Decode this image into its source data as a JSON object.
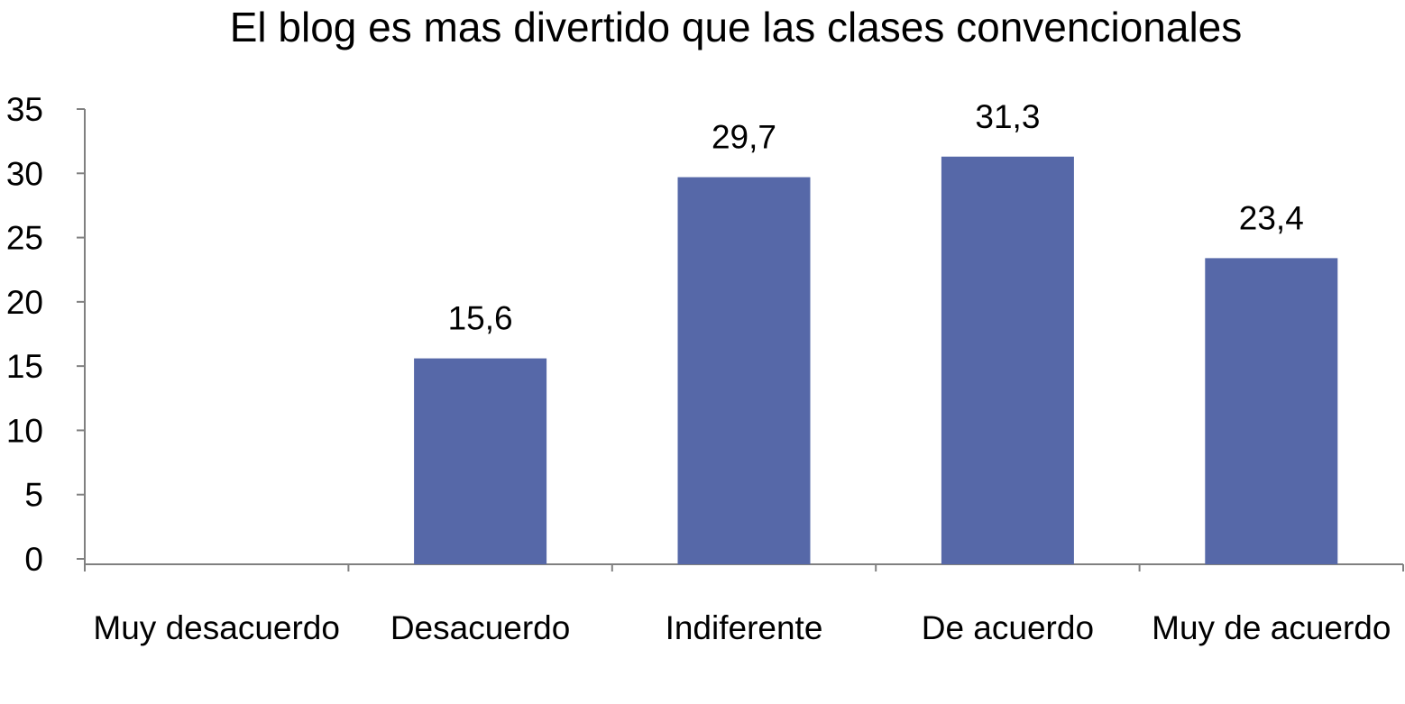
{
  "chart_data": {
    "type": "bar",
    "title": "El blog es mas divertido que las clases convencionales",
    "xlabel": "",
    "ylabel": "",
    "categories": [
      "Muy desacuerdo",
      "Desacuerdo",
      "Indiferente",
      "De acuerdo",
      "Muy de acuerdo"
    ],
    "values": [
      0,
      15.6,
      29.7,
      31.3,
      23.4
    ],
    "data_labels": [
      "",
      "15,6",
      "29,7",
      "31,3",
      "23,4"
    ],
    "ylim": [
      0,
      35
    ],
    "yticks": [
      "0",
      "5",
      "10",
      "15",
      "20",
      "25",
      "30",
      "35"
    ],
    "grid": false,
    "legend": "none",
    "colors": {
      "bar": "#5668a8",
      "axis": "#808080"
    }
  }
}
